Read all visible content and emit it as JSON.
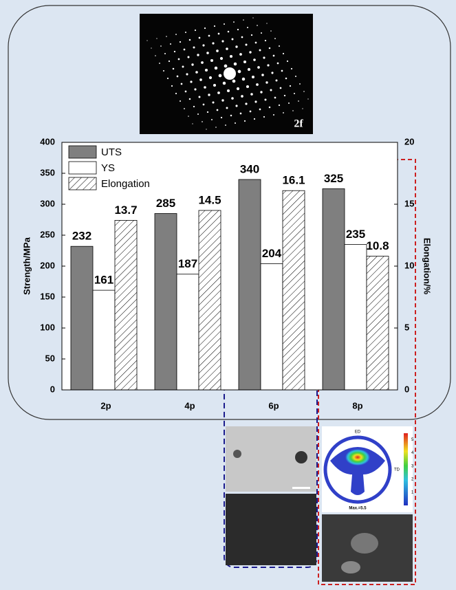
{
  "chart_data": {
    "type": "bar",
    "categories": [
      "2p",
      "4p",
      "6p",
      "8p"
    ],
    "series": [
      {
        "name": "UTS",
        "color": "#7f7f7f",
        "values": [
          232,
          285,
          340,
          325
        ]
      },
      {
        "name": "YS",
        "color": "#ffffff",
        "values": [
          161,
          187,
          204,
          235
        ]
      },
      {
        "name": "Elongation",
        "color": "#000000",
        "hatch": true,
        "axis": "y2",
        "values": [
          13.7,
          14.5,
          16.1,
          10.8
        ]
      }
    ],
    "y_label": "Strength/MPa",
    "y2_label": "Elongation/%",
    "ylim": [
      0,
      400
    ],
    "yticks": [
      0,
      50,
      100,
      150,
      200,
      250,
      300,
      350,
      400
    ],
    "y2lim": [
      0,
      20
    ],
    "y2ticks": [
      0,
      5,
      10,
      15,
      20
    ],
    "legend": "upper left"
  },
  "diffraction_image": {
    "label": "2f"
  },
  "pole_figure": {
    "top_label": "ED",
    "side_label": "TD",
    "max_label": "Max.=5.5",
    "colorbar_ticks": [
      1,
      2,
      3,
      4,
      5
    ]
  }
}
